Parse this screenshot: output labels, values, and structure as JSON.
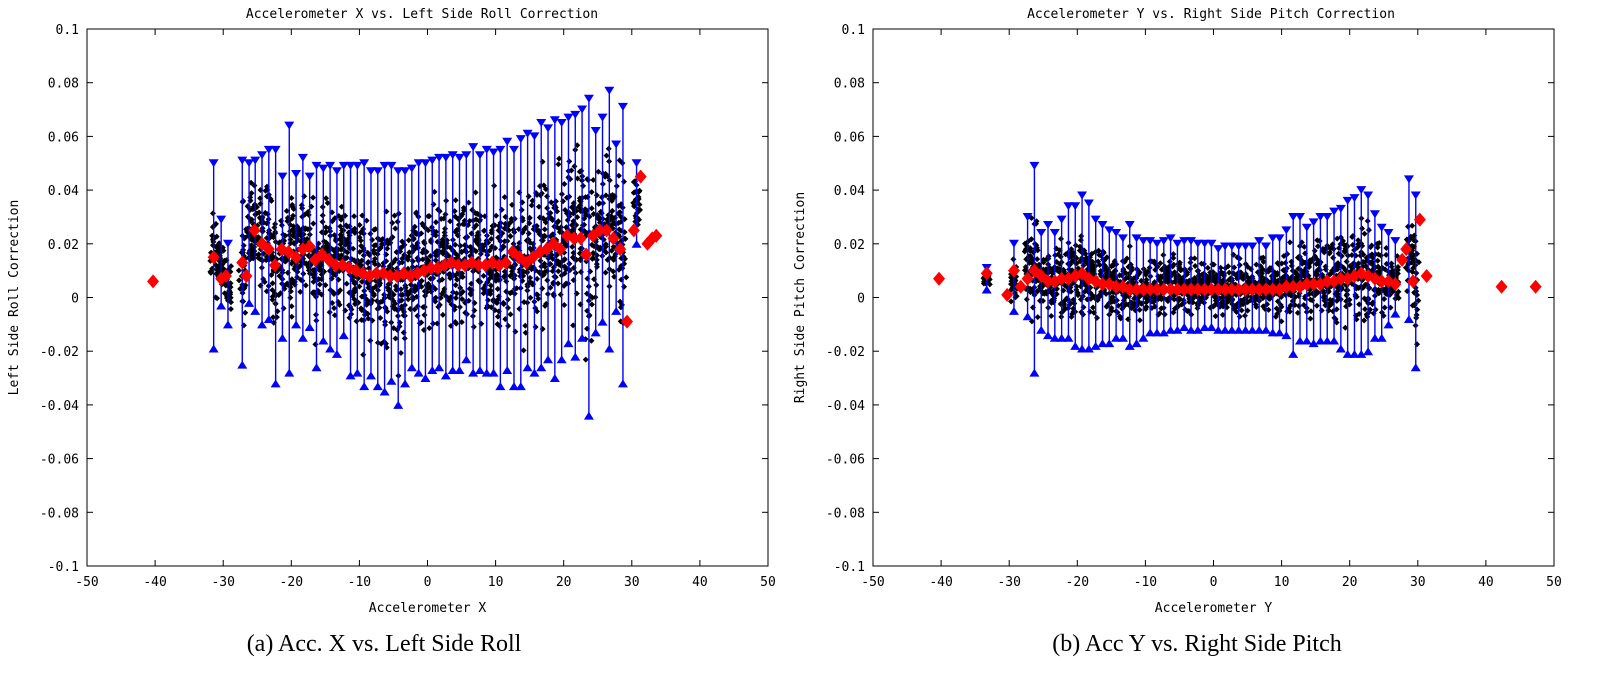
{
  "chart_data": [
    {
      "type": "scatter",
      "id": "a",
      "title": "Accelerometer X vs. Left Side Roll Correction",
      "xlabel": "Accelerometer X",
      "ylabel": "Left Side Roll Correction",
      "caption": "(a)  Acc. X vs. Left Side Roll",
      "xlim": [
        -50,
        50
      ],
      "ylim": [
        -0.1,
        0.1
      ],
      "xticks": [
        "-50",
        "-40",
        "-30",
        "-20",
        "-10",
        "0",
        "10",
        "20",
        "30",
        "40",
        "50"
      ],
      "yticks": [
        "0.1",
        "0.08",
        "0.06",
        "0.04",
        "0.02",
        "0",
        "-0.02",
        "-0.04",
        "-0.06",
        "-0.08",
        "-0.1"
      ],
      "colors": {
        "points": "#000000",
        "errorbars": "#0000ff",
        "mean": "#ff0000"
      },
      "mean_points": [
        [
          -40.3,
          0.006
        ],
        [
          -31.4,
          0.015
        ],
        [
          -30.3,
          0.007
        ],
        [
          -29.6,
          0.008
        ],
        [
          -27.2,
          0.013
        ],
        [
          -26.6,
          0.008
        ],
        [
          -25.4,
          0.025
        ],
        [
          -24.3,
          0.02
        ],
        [
          -23.3,
          0.018
        ],
        [
          -22.4,
          0.012
        ],
        [
          -21.4,
          0.018
        ],
        [
          -20.4,
          0.017
        ],
        [
          -19.3,
          0.015
        ],
        [
          -18.3,
          0.018
        ],
        [
          -17.3,
          0.019
        ],
        [
          -16.5,
          0.014
        ],
        [
          -15.5,
          0.016
        ],
        [
          -14.5,
          0.014
        ],
        [
          -13.5,
          0.012
        ],
        [
          -12.5,
          0.012
        ],
        [
          -11.5,
          0.011
        ],
        [
          -10.5,
          0.01
        ],
        [
          -9.5,
          0.009
        ],
        [
          -8.5,
          0.008
        ],
        [
          -7.5,
          0.009
        ],
        [
          -6.5,
          0.009
        ],
        [
          -5.5,
          0.008
        ],
        [
          -4.5,
          0.008
        ],
        [
          -3.5,
          0.009
        ],
        [
          -2.5,
          0.008
        ],
        [
          -1.5,
          0.009
        ],
        [
          -0.5,
          0.01
        ],
        [
          0.5,
          0.011
        ],
        [
          1.5,
          0.011
        ],
        [
          2.5,
          0.012
        ],
        [
          3.5,
          0.013
        ],
        [
          4.5,
          0.012
        ],
        [
          5.5,
          0.012
        ],
        [
          6.5,
          0.013
        ],
        [
          7.5,
          0.012
        ],
        [
          8.5,
          0.012
        ],
        [
          9.5,
          0.013
        ],
        [
          10.5,
          0.012
        ],
        [
          11.5,
          0.013
        ],
        [
          12.5,
          0.017
        ],
        [
          13.5,
          0.015
        ],
        [
          14.5,
          0.013
        ],
        [
          15.5,
          0.015
        ],
        [
          16.5,
          0.017
        ],
        [
          17.5,
          0.018
        ],
        [
          18.5,
          0.02
        ],
        [
          19.5,
          0.018
        ],
        [
          20.5,
          0.023
        ],
        [
          21.5,
          0.022
        ],
        [
          22.5,
          0.022
        ],
        [
          23.3,
          0.016
        ],
        [
          24.3,
          0.023
        ],
        [
          25.3,
          0.025
        ],
        [
          26.3,
          0.025
        ],
        [
          27.3,
          0.022
        ],
        [
          28.3,
          0.018
        ],
        [
          29.3,
          -0.009
        ],
        [
          30.3,
          0.025
        ],
        [
          31.3,
          0.045
        ],
        [
          32.3,
          0.02
        ],
        [
          33.0,
          0.022
        ],
        [
          33.6,
          0.023
        ]
      ],
      "errorbars": [
        [
          -31.4,
          -0.019,
          0.05
        ],
        [
          -30.3,
          -0.003,
          0.029
        ],
        [
          -29.3,
          -0.01,
          0.02
        ],
        [
          -27.2,
          -0.025,
          0.051
        ],
        [
          -26.2,
          -0.002,
          0.05
        ],
        [
          -25.3,
          -0.005,
          0.051
        ],
        [
          -24.3,
          -0.01,
          0.053
        ],
        [
          -23.3,
          -0.008,
          0.055
        ],
        [
          -22.3,
          -0.032,
          0.055
        ],
        [
          -21.3,
          -0.015,
          0.045
        ],
        [
          -20.3,
          -0.028,
          0.064
        ],
        [
          -19.3,
          -0.01,
          0.046
        ],
        [
          -18.3,
          -0.015,
          0.052
        ],
        [
          -17.3,
          -0.011,
          0.045
        ],
        [
          -16.3,
          -0.026,
          0.049
        ],
        [
          -15.3,
          -0.016,
          0.048
        ],
        [
          -14.3,
          -0.019,
          0.049
        ],
        [
          -13.3,
          -0.021,
          0.047
        ],
        [
          -12.3,
          -0.014,
          0.049
        ],
        [
          -11.3,
          -0.029,
          0.049
        ],
        [
          -10.3,
          -0.028,
          0.049
        ],
        [
          -9.3,
          -0.033,
          0.05
        ],
        [
          -8.3,
          -0.029,
          0.047
        ],
        [
          -7.3,
          -0.033,
          0.047
        ],
        [
          -6.3,
          -0.035,
          0.049
        ],
        [
          -5.3,
          -0.031,
          0.049
        ],
        [
          -4.3,
          -0.04,
          0.047
        ],
        [
          -3.3,
          -0.032,
          0.047
        ],
        [
          -2.3,
          -0.026,
          0.048
        ],
        [
          -1.3,
          -0.028,
          0.05
        ],
        [
          -0.3,
          -0.03,
          0.05
        ],
        [
          0.7,
          -0.027,
          0.051
        ],
        [
          1.7,
          -0.026,
          0.052
        ],
        [
          2.7,
          -0.029,
          0.052
        ],
        [
          3.7,
          -0.027,
          0.053
        ],
        [
          4.7,
          -0.027,
          0.052
        ],
        [
          5.7,
          -0.023,
          0.053
        ],
        [
          6.7,
          -0.028,
          0.056
        ],
        [
          7.7,
          -0.027,
          0.053
        ],
        [
          8.7,
          -0.028,
          0.055
        ],
        [
          9.7,
          -0.028,
          0.054
        ],
        [
          10.7,
          -0.033,
          0.055
        ],
        [
          11.7,
          -0.027,
          0.058
        ],
        [
          12.7,
          -0.033,
          0.055
        ],
        [
          13.7,
          -0.033,
          0.059
        ],
        [
          14.7,
          -0.026,
          0.061
        ],
        [
          15.7,
          -0.028,
          0.06
        ],
        [
          16.7,
          -0.026,
          0.065
        ],
        [
          17.7,
          -0.023,
          0.063
        ],
        [
          18.7,
          -0.03,
          0.066
        ],
        [
          19.7,
          -0.023,
          0.065
        ],
        [
          20.7,
          -0.017,
          0.067
        ],
        [
          21.7,
          -0.022,
          0.068
        ],
        [
          22.7,
          -0.015,
          0.07
        ],
        [
          23.7,
          -0.044,
          0.074
        ],
        [
          24.7,
          -0.013,
          0.062
        ],
        [
          25.7,
          -0.009,
          0.067
        ],
        [
          26.7,
          -0.019,
          0.077
        ],
        [
          27.7,
          -0.005,
          0.057
        ],
        [
          28.7,
          -0.032,
          0.071
        ],
        [
          30.7,
          0.02,
          0.05
        ]
      ],
      "scatter_summary": "dense black diamond markers spanning x from about -31 to 30 and y from about -0.035 to 0.067"
    },
    {
      "type": "scatter",
      "id": "b",
      "title": "Accelerometer Y vs. Right Side Pitch Correction",
      "xlabel": "Accelerometer Y",
      "ylabel": "Right Side Pitch Correction",
      "caption": "(b)  Acc Y vs. Right Side Pitch",
      "xlim": [
        -50,
        50
      ],
      "ylim": [
        -0.1,
        0.1
      ],
      "xticks": [
        "-50",
        "-40",
        "-30",
        "-20",
        "-10",
        "0",
        "10",
        "20",
        "30",
        "40",
        "50"
      ],
      "yticks": [
        "0.1",
        "0.08",
        "0.06",
        "0.04",
        "0.02",
        "0",
        "-0.02",
        "-0.04",
        "-0.06",
        "-0.08",
        "-0.1"
      ],
      "colors": {
        "points": "#000000",
        "errorbars": "#0000ff",
        "mean": "#ff0000"
      },
      "mean_points": [
        [
          -40.3,
          0.007
        ],
        [
          -33.3,
          0.009
        ],
        [
          -30.3,
          0.001
        ],
        [
          -29.3,
          0.01
        ],
        [
          -28.3,
          0.004
        ],
        [
          -27.3,
          0.007
        ],
        [
          -26.3,
          0.01
        ],
        [
          -25.3,
          0.008
        ],
        [
          -24.3,
          0.006
        ],
        [
          -23.3,
          0.006
        ],
        [
          -22.3,
          0.007
        ],
        [
          -21.3,
          0.007
        ],
        [
          -20.3,
          0.008
        ],
        [
          -19.3,
          0.009
        ],
        [
          -18.3,
          0.007
        ],
        [
          -17.3,
          0.006
        ],
        [
          -16.3,
          0.005
        ],
        [
          -15.3,
          0.005
        ],
        [
          -14.3,
          0.004
        ],
        [
          -13.3,
          0.004
        ],
        [
          -12.3,
          0.003
        ],
        [
          -11.3,
          0.003
        ],
        [
          -10.3,
          0.003
        ],
        [
          -9.3,
          0.003
        ],
        [
          -8.3,
          0.003
        ],
        [
          -7.3,
          0.003
        ],
        [
          -6.3,
          0.003
        ],
        [
          -5.3,
          0.003
        ],
        [
          -4.3,
          0.003
        ],
        [
          -3.3,
          0.003
        ],
        [
          -2.3,
          0.003
        ],
        [
          -1.3,
          0.003
        ],
        [
          -0.3,
          0.003
        ],
        [
          0.7,
          0.003
        ],
        [
          1.7,
          0.003
        ],
        [
          2.7,
          0.003
        ],
        [
          3.7,
          0.003
        ],
        [
          4.7,
          0.003
        ],
        [
          5.7,
          0.003
        ],
        [
          6.7,
          0.003
        ],
        [
          7.7,
          0.003
        ],
        [
          8.7,
          0.003
        ],
        [
          9.7,
          0.003
        ],
        [
          10.7,
          0.004
        ],
        [
          11.7,
          0.004
        ],
        [
          12.7,
          0.004
        ],
        [
          13.7,
          0.005
        ],
        [
          14.7,
          0.005
        ],
        [
          15.7,
          0.005
        ],
        [
          16.7,
          0.006
        ],
        [
          17.7,
          0.006
        ],
        [
          18.7,
          0.007
        ],
        [
          19.7,
          0.007
        ],
        [
          20.7,
          0.008
        ],
        [
          21.7,
          0.009
        ],
        [
          22.7,
          0.008
        ],
        [
          23.7,
          0.007
        ],
        [
          24.7,
          0.006
        ],
        [
          25.7,
          0.006
        ],
        [
          26.7,
          0.005
        ],
        [
          27.7,
          0.014
        ],
        [
          28.3,
          0.018
        ],
        [
          29.3,
          0.006
        ],
        [
          30.3,
          0.029
        ],
        [
          31.3,
          0.008
        ],
        [
          42.3,
          0.004
        ],
        [
          47.3,
          0.004
        ]
      ],
      "errorbars": [
        [
          -33.3,
          0.003,
          0.011
        ],
        [
          -29.3,
          -0.005,
          0.02
        ],
        [
          -27.3,
          -0.007,
          0.03
        ],
        [
          -26.3,
          -0.028,
          0.049
        ],
        [
          -25.3,
          -0.012,
          0.024
        ],
        [
          -24.3,
          -0.014,
          0.027
        ],
        [
          -23.3,
          -0.015,
          0.024
        ],
        [
          -22.3,
          -0.015,
          0.029
        ],
        [
          -21.3,
          -0.015,
          0.034
        ],
        [
          -20.3,
          -0.018,
          0.034
        ],
        [
          -19.3,
          -0.019,
          0.038
        ],
        [
          -18.3,
          -0.019,
          0.035
        ],
        [
          -17.3,
          -0.018,
          0.029
        ],
        [
          -16.3,
          -0.017,
          0.027
        ],
        [
          -15.3,
          -0.017,
          0.025
        ],
        [
          -14.3,
          -0.015,
          0.024
        ],
        [
          -13.3,
          -0.015,
          0.022
        ],
        [
          -12.3,
          -0.018,
          0.027
        ],
        [
          -11.3,
          -0.017,
          0.022
        ],
        [
          -10.3,
          -0.015,
          0.021
        ],
        [
          -9.3,
          -0.013,
          0.021
        ],
        [
          -8.3,
          -0.013,
          0.02
        ],
        [
          -7.3,
          -0.013,
          0.021
        ],
        [
          -6.3,
          -0.012,
          0.022
        ],
        [
          -5.3,
          -0.012,
          0.02
        ],
        [
          -4.3,
          -0.011,
          0.021
        ],
        [
          -3.3,
          -0.012,
          0.021
        ],
        [
          -2.3,
          -0.012,
          0.02
        ],
        [
          -1.3,
          -0.011,
          0.02
        ],
        [
          -0.3,
          -0.011,
          0.02
        ],
        [
          0.7,
          -0.012,
          0.018
        ],
        [
          1.7,
          -0.012,
          0.019
        ],
        [
          2.7,
          -0.012,
          0.019
        ],
        [
          3.7,
          -0.012,
          0.019
        ],
        [
          4.7,
          -0.012,
          0.019
        ],
        [
          5.7,
          -0.012,
          0.019
        ],
        [
          6.7,
          -0.012,
          0.021
        ],
        [
          7.7,
          -0.012,
          0.019
        ],
        [
          8.7,
          -0.013,
          0.022
        ],
        [
          9.7,
          -0.013,
          0.022
        ],
        [
          10.7,
          -0.014,
          0.025
        ],
        [
          11.7,
          -0.021,
          0.03
        ],
        [
          12.7,
          -0.016,
          0.03
        ],
        [
          13.7,
          -0.016,
          0.026
        ],
        [
          14.7,
          -0.017,
          0.028
        ],
        [
          15.7,
          -0.016,
          0.03
        ],
        [
          16.7,
          -0.016,
          0.03
        ],
        [
          17.7,
          -0.016,
          0.032
        ],
        [
          18.7,
          -0.019,
          0.033
        ],
        [
          19.7,
          -0.021,
          0.036
        ],
        [
          20.7,
          -0.021,
          0.037
        ],
        [
          21.7,
          -0.021,
          0.04
        ],
        [
          22.7,
          -0.02,
          0.038
        ],
        [
          23.7,
          -0.015,
          0.031
        ],
        [
          24.7,
          -0.015,
          0.026
        ],
        [
          25.7,
          -0.01,
          0.024
        ],
        [
          26.7,
          -0.006,
          0.021
        ],
        [
          28.7,
          -0.008,
          0.044
        ],
        [
          29.7,
          -0.026,
          0.038
        ]
      ],
      "scatter_summary": "dense black diamond markers spanning x from about -30 to 29 and y from about -0.018 to 0.035"
    }
  ]
}
